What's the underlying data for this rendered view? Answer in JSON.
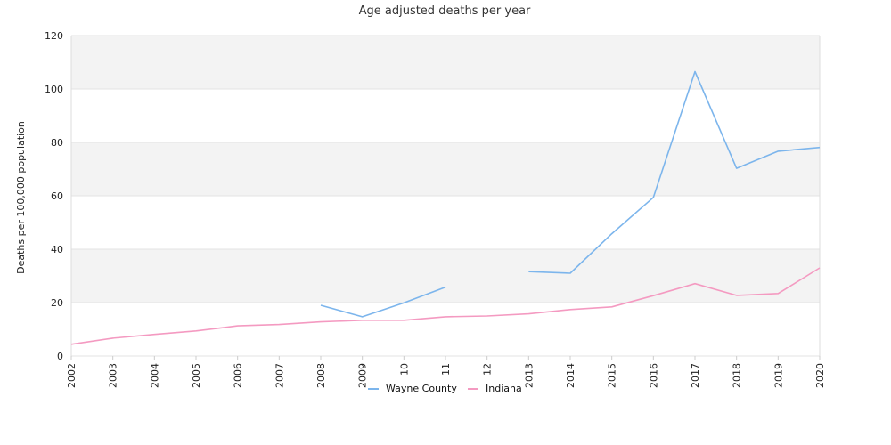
{
  "chart_data": {
    "type": "line",
    "title": "Age adjusted deaths per year",
    "xlabel": "",
    "ylabel": "Deaths per 100,000 population",
    "categories": [
      "2002",
      "2003",
      "2004",
      "2005",
      "2006",
      "2007",
      "2008",
      "2009",
      "2010",
      "2011",
      "2012",
      "2013",
      "2014",
      "2015",
      "2016",
      "2017",
      "2018",
      "2019",
      "2020"
    ],
    "tick_labels": [
      "2002",
      "2003",
      "2004",
      "2005",
      "2006",
      "2007",
      "2008",
      "2009",
      "10",
      "11",
      "12",
      "2013",
      "2014",
      "2015",
      "2016",
      "2017",
      "2018",
      "2019",
      "2020"
    ],
    "ylim": [
      0,
      120
    ],
    "yticks": [
      0,
      20,
      40,
      60,
      80,
      100,
      120
    ],
    "grid": true,
    "legend_position": "bottom",
    "series": [
      {
        "name": "Wayne County",
        "color": "#7cb5ec",
        "values": [
          null,
          null,
          null,
          null,
          null,
          null,
          19,
          14.7,
          19.9,
          25.8,
          null,
          31.6,
          31.0,
          45.8,
          59.4,
          106.5,
          70.3,
          76.7,
          78.1
        ]
      },
      {
        "name": "Indiana",
        "color": "#f49ac1",
        "values": [
          4.4,
          6.7,
          8.1,
          9.4,
          11.3,
          11.8,
          12.8,
          13.4,
          13.4,
          14.7,
          15.0,
          15.8,
          17.4,
          18.4,
          22.6,
          27.1,
          22.7,
          23.4,
          33.0
        ]
      }
    ]
  }
}
